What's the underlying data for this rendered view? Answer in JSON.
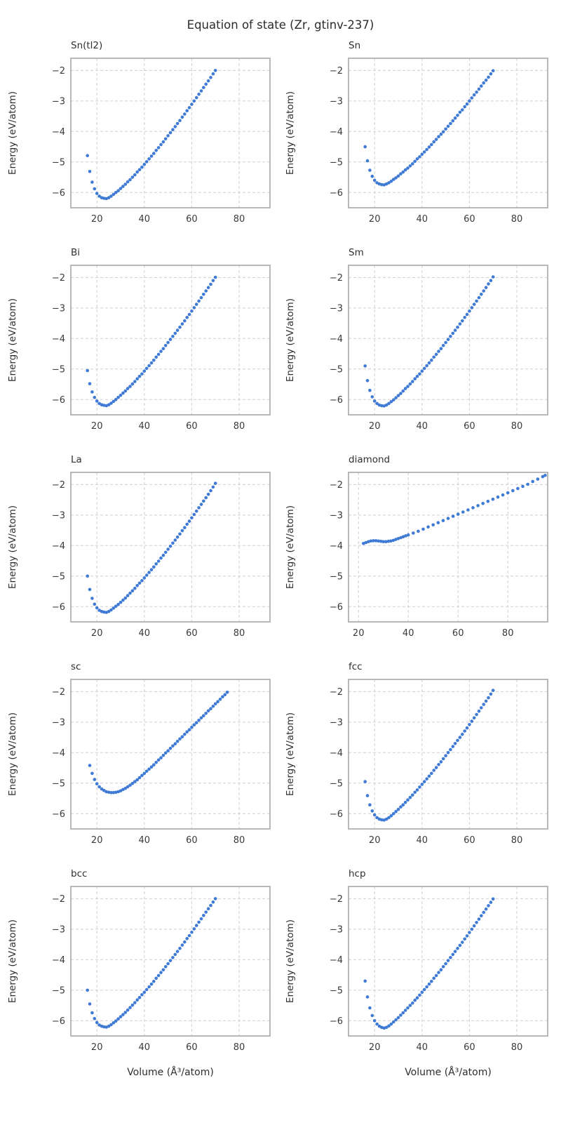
{
  "chart_data": {
    "type": "scatter",
    "title": "Equation of state (Zr, gtinv-237)",
    "xlabel": "Volume (Å³/atom)",
    "ylabel": "Energy (eV/atom)",
    "point_color": "#3f7ad4",
    "grid_color": "#cfcfcf",
    "frame_color": "#b0b0b0",
    "tick_color": "#3a3a3a",
    "grid": true,
    "legend": false,
    "xticks": [
      20,
      40,
      60,
      80
    ],
    "yticks": [
      -6,
      -5,
      -4,
      -3,
      -2
    ],
    "ylim": [
      -6.5,
      -1.6
    ],
    "x_default": [
      16,
      17,
      18,
      19,
      20,
      21,
      22,
      23,
      24,
      25,
      26,
      27,
      28,
      29,
      30,
      31,
      32,
      33,
      34,
      35,
      36,
      37,
      38,
      39,
      40,
      41,
      42,
      43,
      44,
      45,
      46,
      47,
      48,
      49,
      50,
      51,
      52,
      53,
      54,
      55,
      56,
      57,
      58,
      59,
      60,
      61,
      62,
      63,
      64,
      65,
      66,
      67,
      68,
      69,
      70
    ],
    "subplots": [
      {
        "label": "Sn(tl2)",
        "xlim": [
          9,
          93
        ],
        "y": [
          -4.79,
          -5.31,
          -5.66,
          -5.88,
          -6.03,
          -6.12,
          -6.17,
          -6.19,
          -6.2,
          -6.17,
          -6.12,
          -6.06,
          -6.0,
          -5.94,
          -5.87,
          -5.8,
          -5.73,
          -5.65,
          -5.58,
          -5.5,
          -5.42,
          -5.33,
          -5.25,
          -5.17,
          -5.08,
          -4.99,
          -4.9,
          -4.81,
          -4.72,
          -4.62,
          -4.53,
          -4.43,
          -4.34,
          -4.24,
          -4.14,
          -4.04,
          -3.94,
          -3.84,
          -3.74,
          -3.64,
          -3.53,
          -3.43,
          -3.32,
          -3.22,
          -3.11,
          -3.0,
          -2.89,
          -2.78,
          -2.67,
          -2.56,
          -2.45,
          -2.34,
          -2.23,
          -2.11,
          -2.0
        ]
      },
      {
        "label": "Sn",
        "xlim": [
          9,
          93
        ],
        "y": [
          -4.5,
          -4.96,
          -5.27,
          -5.47,
          -5.6,
          -5.68,
          -5.72,
          -5.74,
          -5.75,
          -5.72,
          -5.68,
          -5.63,
          -5.57,
          -5.52,
          -5.46,
          -5.39,
          -5.33,
          -5.26,
          -5.2,
          -5.13,
          -5.06,
          -4.98,
          -4.9,
          -4.83,
          -4.75,
          -4.67,
          -4.59,
          -4.51,
          -4.43,
          -4.34,
          -4.26,
          -4.17,
          -4.09,
          -4.01,
          -3.92,
          -3.83,
          -3.74,
          -3.65,
          -3.56,
          -3.47,
          -3.37,
          -3.29,
          -3.19,
          -3.1,
          -3.0,
          -2.9,
          -2.8,
          -2.71,
          -2.61,
          -2.51,
          -2.41,
          -2.32,
          -2.22,
          -2.11,
          -2.01
        ]
      },
      {
        "label": "Bi",
        "xlim": [
          9,
          93
        ],
        "y": [
          -5.05,
          -5.48,
          -5.75,
          -5.93,
          -6.05,
          -6.13,
          -6.17,
          -6.19,
          -6.2,
          -6.17,
          -6.12,
          -6.06,
          -6.0,
          -5.93,
          -5.86,
          -5.79,
          -5.72,
          -5.64,
          -5.57,
          -5.49,
          -5.41,
          -5.32,
          -5.24,
          -5.16,
          -5.07,
          -4.98,
          -4.89,
          -4.8,
          -4.71,
          -4.61,
          -4.52,
          -4.42,
          -4.33,
          -4.23,
          -4.13,
          -4.03,
          -3.93,
          -3.83,
          -3.73,
          -3.63,
          -3.52,
          -3.42,
          -3.31,
          -3.21,
          -3.1,
          -2.99,
          -2.88,
          -2.77,
          -2.66,
          -2.55,
          -2.44,
          -2.33,
          -2.22,
          -2.1,
          -1.99
        ]
      },
      {
        "label": "Sm",
        "xlim": [
          9,
          93
        ],
        "y": [
          -4.9,
          -5.38,
          -5.7,
          -5.91,
          -6.05,
          -6.13,
          -6.18,
          -6.2,
          -6.21,
          -6.18,
          -6.13,
          -6.07,
          -6.01,
          -5.94,
          -5.87,
          -5.8,
          -5.72,
          -5.64,
          -5.57,
          -5.49,
          -5.41,
          -5.32,
          -5.24,
          -5.16,
          -5.07,
          -4.98,
          -4.89,
          -4.8,
          -4.71,
          -4.61,
          -4.52,
          -4.42,
          -4.33,
          -4.23,
          -4.13,
          -4.03,
          -3.93,
          -3.83,
          -3.73,
          -3.63,
          -3.52,
          -3.42,
          -3.31,
          -3.21,
          -3.1,
          -2.99,
          -2.88,
          -2.77,
          -2.66,
          -2.55,
          -2.44,
          -2.33,
          -2.21,
          -2.1,
          -1.98
        ]
      },
      {
        "label": "La",
        "xlim": [
          9,
          93
        ],
        "y": [
          -5.0,
          -5.44,
          -5.73,
          -5.92,
          -6.04,
          -6.12,
          -6.16,
          -6.18,
          -6.19,
          -6.16,
          -6.11,
          -6.05,
          -5.99,
          -5.93,
          -5.86,
          -5.79,
          -5.72,
          -5.64,
          -5.56,
          -5.48,
          -5.4,
          -5.31,
          -5.23,
          -5.15,
          -5.06,
          -4.97,
          -4.88,
          -4.79,
          -4.7,
          -4.6,
          -4.51,
          -4.41,
          -4.32,
          -4.22,
          -4.12,
          -4.02,
          -3.92,
          -3.82,
          -3.72,
          -3.62,
          -3.51,
          -3.41,
          -3.3,
          -3.2,
          -3.09,
          -2.98,
          -2.87,
          -2.76,
          -2.65,
          -2.54,
          -2.43,
          -2.32,
          -2.2,
          -2.08,
          -1.96
        ]
      },
      {
        "label": "diamond",
        "xlim": [
          16,
          96
        ],
        "x": [
          22,
          23,
          24,
          25,
          26,
          27,
          28,
          29,
          30,
          31,
          32,
          33,
          34,
          35,
          36,
          37,
          38,
          39,
          40,
          42,
          44,
          46,
          48,
          50,
          52,
          54,
          56,
          58,
          60,
          62,
          64,
          66,
          68,
          70,
          72,
          74,
          76,
          78,
          80,
          82,
          84,
          86,
          88,
          90,
          92,
          94,
          95
        ],
        "y": [
          -3.93,
          -3.9,
          -3.87,
          -3.85,
          -3.84,
          -3.84,
          -3.85,
          -3.86,
          -3.87,
          -3.87,
          -3.86,
          -3.85,
          -3.83,
          -3.8,
          -3.77,
          -3.74,
          -3.71,
          -3.68,
          -3.65,
          -3.59,
          -3.53,
          -3.46,
          -3.39,
          -3.32,
          -3.25,
          -3.18,
          -3.11,
          -3.04,
          -2.97,
          -2.9,
          -2.83,
          -2.76,
          -2.69,
          -2.62,
          -2.55,
          -2.48,
          -2.41,
          -2.34,
          -2.27,
          -2.2,
          -2.13,
          -2.06,
          -1.99,
          -1.9,
          -1.82,
          -1.74,
          -1.7
        ]
      },
      {
        "label": "sc",
        "xlim": [
          9,
          93
        ],
        "x": [
          17,
          18,
          19,
          20,
          21,
          22,
          23,
          24,
          25,
          26,
          27,
          28,
          29,
          30,
          31,
          32,
          33,
          34,
          35,
          36,
          37,
          38,
          39,
          40,
          41,
          42,
          43,
          44,
          45,
          46,
          47,
          48,
          49,
          50,
          51,
          52,
          53,
          54,
          55,
          56,
          57,
          58,
          59,
          60,
          61,
          62,
          63,
          64,
          65,
          66,
          67,
          68,
          69,
          70,
          71,
          72,
          73,
          74,
          75
        ],
        "y": [
          -4.42,
          -4.68,
          -4.88,
          -5.02,
          -5.12,
          -5.19,
          -5.24,
          -5.28,
          -5.3,
          -5.31,
          -5.31,
          -5.3,
          -5.28,
          -5.25,
          -5.21,
          -5.17,
          -5.12,
          -5.07,
          -5.01,
          -4.95,
          -4.89,
          -4.82,
          -4.75,
          -4.68,
          -4.61,
          -4.54,
          -4.47,
          -4.4,
          -4.32,
          -4.24,
          -4.17,
          -4.09,
          -4.01,
          -3.94,
          -3.86,
          -3.78,
          -3.71,
          -3.63,
          -3.55,
          -3.48,
          -3.4,
          -3.32,
          -3.25,
          -3.17,
          -3.09,
          -3.02,
          -2.94,
          -2.86,
          -2.79,
          -2.71,
          -2.63,
          -2.56,
          -2.48,
          -2.4,
          -2.33,
          -2.25,
          -2.17,
          -2.1,
          -2.02
        ]
      },
      {
        "label": "fcc",
        "xlim": [
          9,
          93
        ],
        "y": [
          -4.95,
          -5.41,
          -5.71,
          -5.91,
          -6.04,
          -6.13,
          -6.18,
          -6.2,
          -6.21,
          -6.18,
          -6.13,
          -6.07,
          -6.0,
          -5.93,
          -5.86,
          -5.78,
          -5.71,
          -5.63,
          -5.55,
          -5.47,
          -5.39,
          -5.3,
          -5.22,
          -5.13,
          -5.04,
          -4.95,
          -4.86,
          -4.77,
          -4.68,
          -4.58,
          -4.49,
          -4.39,
          -4.3,
          -4.2,
          -4.1,
          -4.0,
          -3.9,
          -3.8,
          -3.7,
          -3.6,
          -3.5,
          -3.4,
          -3.29,
          -3.19,
          -3.08,
          -2.97,
          -2.86,
          -2.75,
          -2.64,
          -2.53,
          -2.42,
          -2.31,
          -2.2,
          -2.08,
          -1.96
        ]
      },
      {
        "label": "bcc",
        "xlim": [
          9,
          93
        ],
        "y": [
          -5.0,
          -5.45,
          -5.74,
          -5.93,
          -6.06,
          -6.14,
          -6.18,
          -6.2,
          -6.21,
          -6.18,
          -6.13,
          -6.07,
          -6.01,
          -5.94,
          -5.87,
          -5.8,
          -5.73,
          -5.65,
          -5.57,
          -5.49,
          -5.41,
          -5.32,
          -5.24,
          -5.15,
          -5.07,
          -4.98,
          -4.89,
          -4.8,
          -4.71,
          -4.61,
          -4.52,
          -4.42,
          -4.33,
          -4.23,
          -4.13,
          -4.03,
          -3.93,
          -3.83,
          -3.73,
          -3.63,
          -3.52,
          -3.42,
          -3.31,
          -3.21,
          -3.1,
          -2.99,
          -2.88,
          -2.77,
          -2.66,
          -2.55,
          -2.44,
          -2.33,
          -2.22,
          -2.11,
          -2.0
        ]
      },
      {
        "label": "hcp",
        "xlim": [
          9,
          93
        ],
        "y": [
          -4.7,
          -5.22,
          -5.58,
          -5.83,
          -6.0,
          -6.11,
          -6.18,
          -6.22,
          -6.24,
          -6.22,
          -6.17,
          -6.11,
          -6.04,
          -5.97,
          -5.9,
          -5.82,
          -5.74,
          -5.66,
          -5.58,
          -5.5,
          -5.42,
          -5.33,
          -5.25,
          -5.16,
          -5.07,
          -4.98,
          -4.89,
          -4.8,
          -4.71,
          -4.61,
          -4.52,
          -4.42,
          -4.33,
          -4.23,
          -4.13,
          -4.03,
          -3.93,
          -3.83,
          -3.73,
          -3.63,
          -3.53,
          -3.43,
          -3.32,
          -3.22,
          -3.11,
          -3.0,
          -2.89,
          -2.78,
          -2.67,
          -2.56,
          -2.45,
          -2.34,
          -2.23,
          -2.12,
          -2.01
        ]
      }
    ]
  }
}
